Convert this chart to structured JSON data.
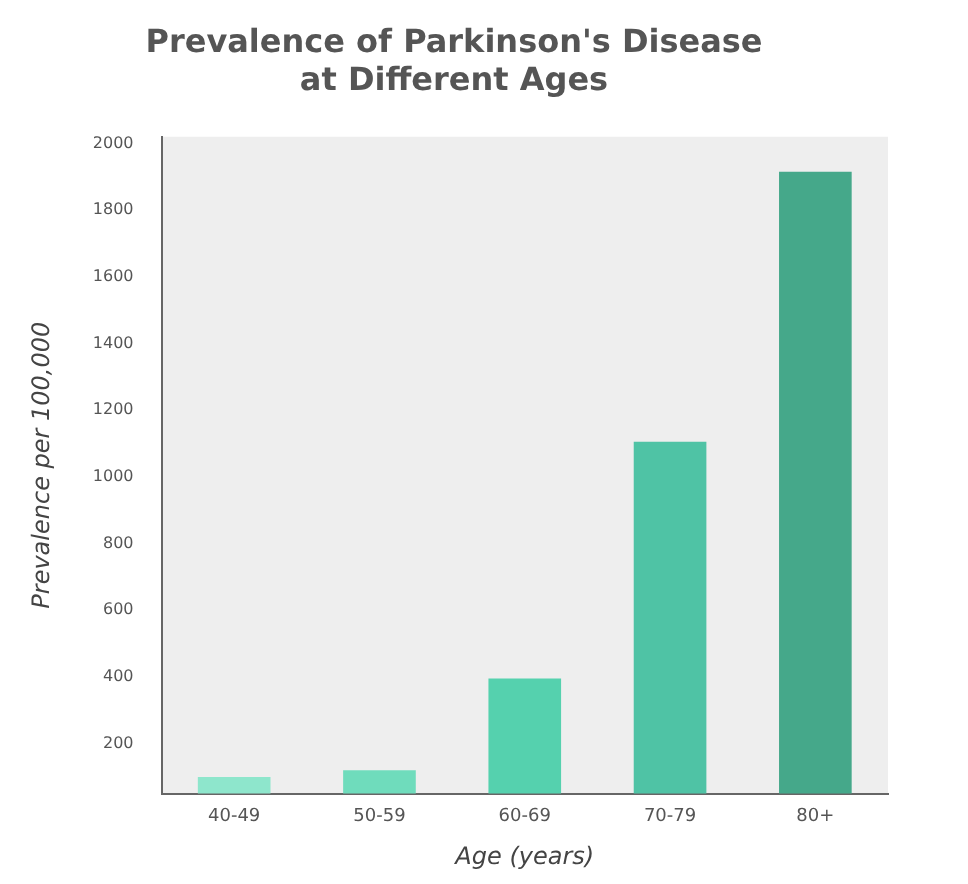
{
  "chart_data": {
    "type": "bar",
    "title": "Prevalence of Parkinson's Disease\nat Different Ages",
    "xlabel": "Age (years)",
    "ylabel": "Prevalence per 100,000",
    "categories": [
      "40-49",
      "50-59",
      "60-69",
      "70-79",
      "80+"
    ],
    "values": [
      100,
      120,
      395,
      1105,
      1915
    ],
    "colors": [
      "#8ee6cc",
      "#6fdcbc",
      "#55d1ae",
      "#4fc3a5",
      "#45a88a"
    ],
    "ylim": [
      50,
      2020
    ],
    "yticks": [
      200,
      400,
      600,
      800,
      1000,
      1200,
      1400,
      1600,
      1800,
      2000
    ],
    "grid": false,
    "legend": false
  }
}
